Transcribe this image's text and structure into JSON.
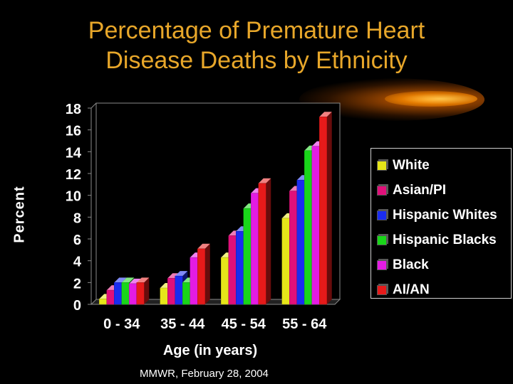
{
  "title_lines": [
    "Percentage of Premature Heart",
    "Disease Deaths by Ethnicity"
  ],
  "source": "MMWR, February 28, 2004",
  "colors": {
    "background": "#000000",
    "title": "#e8a72a",
    "text": "#ffffff",
    "White": "#e6e619",
    "Asian/PI": "#e0107a",
    "Hispanic Whites": "#1a2cf0",
    "Hispanic Blacks": "#19d619",
    "Black": "#e31ce3",
    "AI/AN": "#e61a1a"
  },
  "chart_data": {
    "type": "bar",
    "title": "Percentage of Premature Heart Disease Deaths by Ethnicity",
    "xlabel": "Age (in years)",
    "ylabel": "Percent",
    "ylim": [
      0,
      18
    ],
    "yticks": [
      0,
      2,
      4,
      6,
      8,
      10,
      12,
      14,
      16,
      18
    ],
    "categories": [
      "0 - 34",
      "35 - 44",
      "45 - 54",
      "55 - 64"
    ],
    "legend_position": "right",
    "series": [
      {
        "name": "White",
        "values": [
          0.5,
          1.5,
          4.3,
          7.9
        ]
      },
      {
        "name": "Asian/PI",
        "values": [
          1.3,
          2.4,
          6.3,
          10.4
        ]
      },
      {
        "name": "Hispanic Whites",
        "values": [
          2.0,
          2.6,
          6.7,
          11.4
        ]
      },
      {
        "name": "Hispanic Blacks",
        "values": [
          2.0,
          2.0,
          8.8,
          14.1
        ]
      },
      {
        "name": "Black",
        "values": [
          1.9,
          4.3,
          10.2,
          14.5
        ]
      },
      {
        "name": "AI/AN",
        "values": [
          2.0,
          5.1,
          11.1,
          17.2
        ]
      }
    ]
  }
}
